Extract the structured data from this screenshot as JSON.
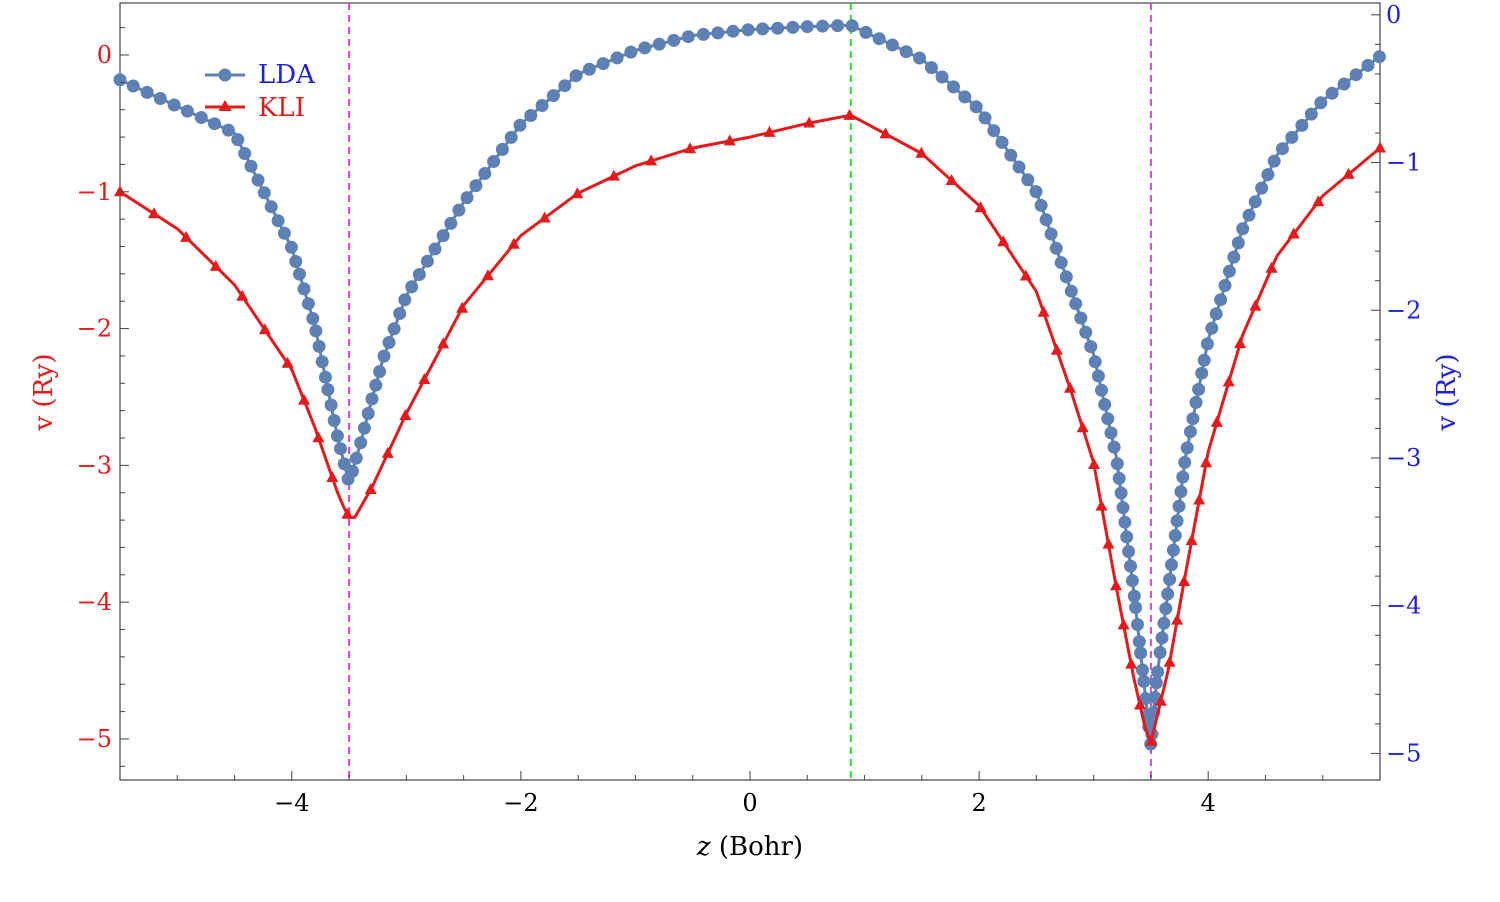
{
  "chart_data": {
    "type": "line",
    "xlabel_var": "z",
    "xlabel_unit": " (Bohr)",
    "ylabel_left": "v (Ry)",
    "ylabel_right": "v (Ry)",
    "xlim": [
      -5.5,
      5.5
    ],
    "ylim_left": [
      -5.3,
      0.38
    ],
    "ylim_right": [
      -5.18,
      0.08
    ],
    "x_ticks": [
      -4,
      -2,
      0,
      2,
      4
    ],
    "x_tick_labels": [
      "−4",
      "−2",
      "0",
      "2",
      "4"
    ],
    "y_left_ticks": [
      0,
      -1,
      -2,
      -3,
      -4,
      -5
    ],
    "y_left_tick_labels": [
      "0",
      "−1",
      "−2",
      "−3",
      "−4",
      "−5"
    ],
    "y_right_ticks": [
      0,
      -1,
      -2,
      -3,
      -4,
      -5
    ],
    "y_right_tick_labels": [
      "0",
      "−1",
      "−2",
      "−3",
      "−4",
      "−5"
    ],
    "vlines": [
      {
        "x": -3.5,
        "color": "#e040e0"
      },
      {
        "x": 0.88,
        "color": "#33dd33"
      },
      {
        "x": 3.5,
        "color": "#e040e0"
      }
    ],
    "legend_position": "top-left",
    "series": [
      {
        "name": "LDA",
        "axis": "right",
        "marker": "circle",
        "color": "#5e81b5",
        "legend_color": "#1f1fe0",
        "x": [
          -5.5,
          -4.5,
          -4.0,
          -3.8,
          -3.7,
          -3.6,
          -3.5,
          -3.4,
          -3.3,
          -3.2,
          -3.0,
          -2.5,
          -2.0,
          -1.5,
          -1.0,
          -0.5,
          0.0,
          0.5,
          0.88,
          1.5,
          2.0,
          2.5,
          3.0,
          3.2,
          3.35,
          3.45,
          3.5,
          3.55,
          3.65,
          3.8,
          4.0,
          4.3,
          4.6,
          5.0,
          5.5
        ],
        "y": [
          -0.44,
          -0.8,
          -1.58,
          -2.1,
          -2.48,
          -2.86,
          -3.17,
          -2.9,
          -2.6,
          -2.32,
          -1.9,
          -1.27,
          -0.74,
          -0.4,
          -0.24,
          -0.14,
          -0.1,
          -0.08,
          -0.07,
          -0.3,
          -0.64,
          -1.2,
          -2.3,
          -3.0,
          -3.9,
          -4.6,
          -4.95,
          -4.5,
          -3.9,
          -3.0,
          -2.2,
          -1.45,
          -0.95,
          -0.58,
          -0.28
        ]
      },
      {
        "name": "KLI",
        "axis": "left",
        "marker": "triangle",
        "color": "#e41a1c",
        "legend_color": "#e41a1c",
        "x": [
          -5.5,
          -5.0,
          -4.5,
          -4.0,
          -3.8,
          -3.6,
          -3.55,
          -3.5,
          -3.45,
          -3.3,
          -3.0,
          -2.5,
          -2.0,
          -1.5,
          -1.0,
          -0.5,
          0.0,
          0.5,
          0.88,
          1.5,
          2.0,
          2.5,
          2.8,
          3.0,
          3.2,
          3.35,
          3.45,
          3.5,
          3.55,
          3.65,
          3.8,
          4.0,
          4.3,
          4.6,
          5.0,
          5.5
        ],
        "y": [
          -1.0,
          -1.27,
          -1.68,
          -2.3,
          -2.72,
          -3.2,
          -3.3,
          -3.38,
          -3.38,
          -3.16,
          -2.62,
          -1.83,
          -1.32,
          -1.01,
          -0.81,
          -0.68,
          -0.6,
          -0.5,
          -0.44,
          -0.72,
          -1.1,
          -1.73,
          -2.45,
          -2.98,
          -3.9,
          -4.55,
          -4.92,
          -5.03,
          -4.85,
          -4.5,
          -3.8,
          -2.9,
          -2.05,
          -1.47,
          -1.03,
          -0.68
        ]
      }
    ]
  }
}
